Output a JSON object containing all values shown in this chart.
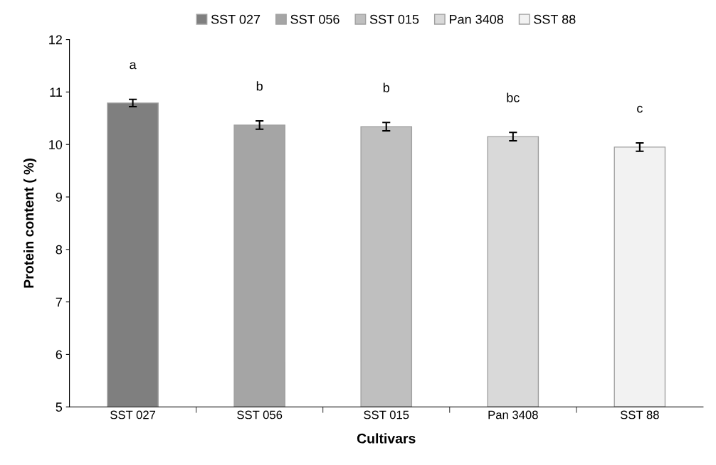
{
  "chart_data": {
    "type": "bar",
    "xlabel": "Cultivars",
    "ylabel": "Protein content ( %)",
    "categories": [
      "SST 027",
      "SST 056",
      "SST 015",
      "Pan 3408",
      "SST 88"
    ],
    "series": [
      {
        "name": "SST 027",
        "color": "#7f7f7f",
        "values": [
          10.79,
          null,
          null,
          null,
          null
        ],
        "errors": [
          0.07,
          null,
          null,
          null,
          null
        ]
      },
      {
        "name": "SST 056",
        "color": "#a5a5a5",
        "values": [
          null,
          10.37,
          null,
          null,
          null
        ],
        "errors": [
          null,
          0.08,
          null,
          null,
          null
        ]
      },
      {
        "name": "SST 015",
        "color": "#bfbfbf",
        "values": [
          null,
          null,
          10.34,
          null,
          null
        ],
        "errors": [
          null,
          null,
          0.08,
          null,
          null
        ]
      },
      {
        "name": "Pan 3408",
        "color": "#d9d9d9",
        "values": [
          null,
          null,
          null,
          10.15,
          null
        ],
        "errors": [
          null,
          null,
          null,
          0.08,
          null
        ]
      },
      {
        "name": "SST 88",
        "color": "#f2f2f2",
        "values": [
          null,
          null,
          null,
          null,
          9.95
        ],
        "errors": [
          null,
          null,
          null,
          null,
          0.08
        ]
      }
    ],
    "ylim": [
      5,
      12
    ],
    "yticks": [
      5,
      6,
      7,
      8,
      9,
      10,
      11,
      12
    ],
    "grid": false,
    "legend": "top",
    "annotations": [
      "a",
      "b",
      "b",
      "bc",
      "c"
    ]
  }
}
